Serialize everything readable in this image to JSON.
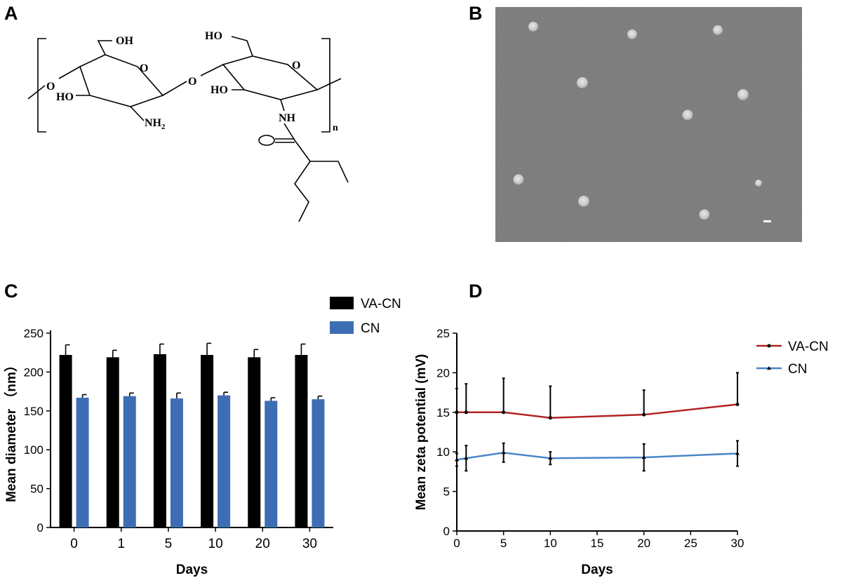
{
  "panels": {
    "a": {
      "letter": "A",
      "structure_labels": {
        "oh_top_left": "OH",
        "ho_top_right": "HO",
        "o_link_left": "O",
        "ring_o_left": "O",
        "o_glyco": "O",
        "ring_o_right": "O",
        "ho_left": "HO",
        "nh2": "NH",
        "nh2_sub": "2",
        "ho_right": "HO",
        "nh": "NH",
        "repeat_n": "n"
      }
    },
    "b": {
      "letter": "B"
    },
    "c": {
      "letter": "C"
    },
    "d": {
      "letter": "D"
    }
  },
  "chart_data": [
    {
      "panel": "C",
      "type": "bar",
      "categories": [
        "0",
        "1",
        "5",
        "10",
        "20",
        "30"
      ],
      "series": [
        {
          "name": "VA-CN",
          "color": "#000000",
          "values": [
            222,
            219,
            223,
            222,
            219,
            222
          ],
          "errors": [
            13,
            9,
            13,
            15,
            10,
            14
          ]
        },
        {
          "name": "CN",
          "color": "#3d6eb3",
          "values": [
            167,
            169,
            166,
            170,
            163,
            165
          ],
          "errors": [
            4,
            4,
            7,
            4,
            4,
            4
          ]
        }
      ],
      "xlabel": "Days",
      "ylabel": "Mean diameter （nm）",
      "ylim": [
        0,
        250
      ],
      "yticks": [
        "0",
        "50",
        "100",
        "150",
        "200",
        "250"
      ],
      "legend_position": "top-right",
      "grid": false
    },
    {
      "panel": "D",
      "type": "line",
      "x": [
        0,
        1,
        5,
        10,
        20,
        30
      ],
      "series": [
        {
          "name": "VA-CN",
          "color": "#b22222",
          "marker": "circle",
          "values": [
            15,
            15,
            15,
            14.3,
            14.7,
            16
          ],
          "errors": [
            3,
            3.6,
            4.3,
            4,
            3.1,
            4
          ]
        },
        {
          "name": "CN",
          "color": "#4a86c8",
          "marker": "triangle",
          "values": [
            9,
            9.2,
            9.9,
            9.2,
            9.3,
            9.8
          ],
          "errors": [
            0.8,
            1.6,
            1.2,
            0.8,
            1.7,
            1.6
          ]
        }
      ],
      "xlabel": "Days",
      "ylabel": "Mean zeta potential (mV)",
      "xlim": [
        0,
        30
      ],
      "ylim": [
        0,
        25
      ],
      "xticks": [
        "0",
        "5",
        "10",
        "15",
        "20",
        "25",
        "30"
      ],
      "yticks": [
        "0",
        "5",
        "10",
        "15",
        "20",
        "25"
      ],
      "legend_position": "top-right",
      "grid": false
    }
  ]
}
